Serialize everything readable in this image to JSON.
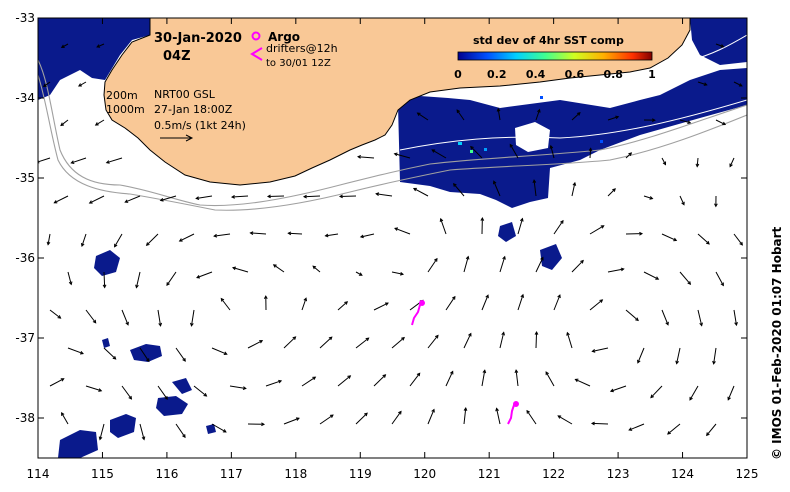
{
  "header": {
    "date": "30-Jan-2020",
    "time": "04Z"
  },
  "legend": {
    "argo_label": "Argo",
    "drifters_label": "drifters@12h",
    "drifters_sub": "to 30/01 12Z",
    "isobath_200": "200m",
    "isobath_1000": "1000m",
    "product": "NRT00 GSL",
    "product_time": "27-Jan 18:00Z",
    "scale_label": "0.5m/s (1kt 24h)"
  },
  "colorbar": {
    "title": "std dev of 4hr SST comp",
    "ticks": [
      "0",
      "0.2",
      "0.4",
      "0.6",
      "0.8",
      "1"
    ],
    "colors": [
      "#00008f",
      "#0050ff",
      "#00d0ff",
      "#40ff90",
      "#d0ff20",
      "#ffb000",
      "#ff3000",
      "#800000"
    ]
  },
  "axes": {
    "x_ticks": [
      "114",
      "115",
      "116",
      "117",
      "118",
      "119",
      "120",
      "121",
      "122",
      "123",
      "124",
      "125"
    ],
    "y_ticks": [
      "-33",
      "-34",
      "-35",
      "-36",
      "-37",
      "-38"
    ],
    "xlim": [
      114,
      125
    ],
    "ylim": [
      -38.5,
      -33
    ]
  },
  "credit": "© IMOS 01-Feb-2020 01:07 Hobart",
  "colors": {
    "land": "#f9c896",
    "sst_patch": "#0a1a8c",
    "argo": "#ff00ff",
    "isobath": "#a0a0a0"
  }
}
